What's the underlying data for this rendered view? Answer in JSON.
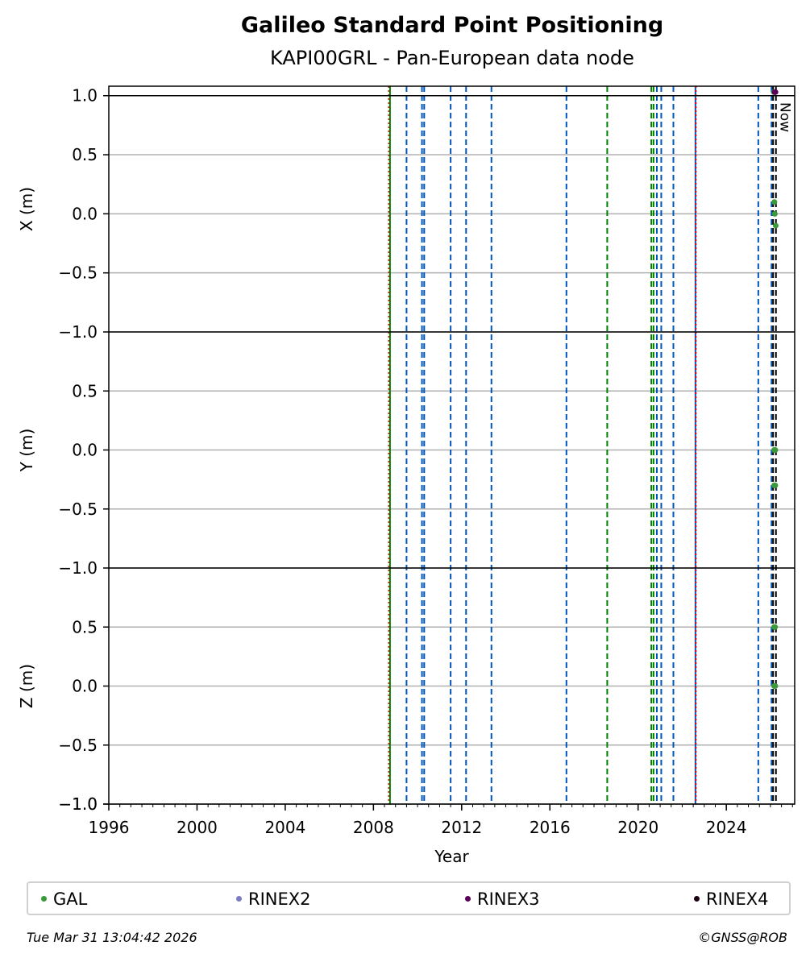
{
  "header": {
    "title": "Galileo Standard Point Positioning",
    "subtitle": "KAPI00GRL - Pan-European data node"
  },
  "chart_data": {
    "type": "scatter",
    "xlabel": "Year",
    "xlim": [
      1996,
      2027.1
    ],
    "x_ticks": [
      1996,
      2000,
      2004,
      2008,
      2012,
      2016,
      2020,
      2024
    ],
    "x_minor_step": 0.5,
    "now_label": "Now",
    "now_x": 2026.25,
    "panels": [
      {
        "ylabel": "X (m)",
        "ylim": [
          -1.0,
          1.08
        ],
        "yticks": [
          1.0,
          0.5,
          0.0,
          -0.5,
          -1.0
        ],
        "ytick_labels": [
          "1.0",
          "0.5",
          "0.0",
          "−0.5",
          "−1.0"
        ]
      },
      {
        "ylabel": "Y (m)",
        "ylim": [
          -1.0,
          1.0
        ],
        "yticks": [
          -1.0,
          0.5,
          0.0,
          -0.5
        ],
        "ytick_labels": [
          "−1.0",
          "0.5",
          "0.0",
          "−0.5"
        ]
      },
      {
        "ylabel": "Z (m)",
        "ylim": [
          -1.0,
          1.0
        ],
        "yticks": [
          -1.0,
          0.5,
          0.0,
          -0.5,
          -1.0
        ],
        "ytick_labels": [
          "−1.0",
          "0.5",
          "0.0",
          "−0.5",
          "−1.0"
        ]
      }
    ],
    "event_lines": [
      {
        "x": 2008.7,
        "color": "#ff0000",
        "style": "dotted"
      },
      {
        "x": 2008.75,
        "color": "#008000",
        "style": "solid"
      },
      {
        "x": 2009.5,
        "color": "#0055bb",
        "style": "dashed"
      },
      {
        "x": 2010.2,
        "color": "#0055bb",
        "style": "dashed"
      },
      {
        "x": 2010.3,
        "color": "#0055bb",
        "style": "dashed"
      },
      {
        "x": 2011.5,
        "color": "#0055bb",
        "style": "dashed"
      },
      {
        "x": 2012.2,
        "color": "#0055bb",
        "style": "dashed"
      },
      {
        "x": 2013.35,
        "color": "#0055bb",
        "style": "dashed"
      },
      {
        "x": 2016.75,
        "color": "#0055bb",
        "style": "dashed"
      },
      {
        "x": 2018.6,
        "color": "#008000",
        "style": "dashed"
      },
      {
        "x": 2020.6,
        "color": "#008000",
        "style": "dashed"
      },
      {
        "x": 2020.7,
        "color": "#008000",
        "style": "dashed"
      },
      {
        "x": 2020.85,
        "color": "#0055bb",
        "style": "dashed"
      },
      {
        "x": 2021.05,
        "color": "#0055bb",
        "style": "dashed"
      },
      {
        "x": 2021.6,
        "color": "#0055bb",
        "style": "dashed"
      },
      {
        "x": 2022.6,
        "color": "#0055bb",
        "style": "solid"
      },
      {
        "x": 2022.62,
        "color": "#ff0000",
        "style": "dotted"
      },
      {
        "x": 2025.45,
        "color": "#0055bb",
        "style": "dashed"
      },
      {
        "x": 2026.05,
        "color": "#0055bb",
        "style": "dashed"
      },
      {
        "x": 2026.12,
        "color": "#000000",
        "style": "dashed"
      },
      {
        "x": 2026.25,
        "color": "#000000",
        "style": "dashed"
      }
    ],
    "series": [
      {
        "name": "GAL",
        "color": "#3a9a3a",
        "points": [
          {
            "panel": 0,
            "x": 2026.15,
            "y": 1.03
          },
          {
            "panel": 0,
            "x": 2026.18,
            "y": 0.1
          },
          {
            "panel": 0,
            "x": 2026.2,
            "y": 0.0
          },
          {
            "panel": 0,
            "x": 2026.24,
            "y": -0.1
          },
          {
            "panel": 1,
            "x": 2026.17,
            "y": 0.0
          },
          {
            "panel": 1,
            "x": 2026.22,
            "y": 0.0
          },
          {
            "panel": 1,
            "x": 2026.17,
            "y": -0.3
          },
          {
            "panel": 1,
            "x": 2026.22,
            "y": -0.3
          },
          {
            "panel": 2,
            "x": 2026.17,
            "y": 0.5
          },
          {
            "panel": 2,
            "x": 2026.21,
            "y": 0.5
          },
          {
            "panel": 2,
            "x": 2026.17,
            "y": 0.0
          },
          {
            "panel": 2,
            "x": 2026.22,
            "y": 0.0
          }
        ]
      },
      {
        "name": "RINEX2",
        "color": "#7b7bc4",
        "points": []
      },
      {
        "name": "RINEX3",
        "color": "#5a005a",
        "points": [
          {
            "panel": 0,
            "x": 2026.19,
            "y": 1.03
          },
          {
            "panel": 0,
            "x": 2026.23,
            "y": 1.03
          }
        ]
      },
      {
        "name": "RINEX4",
        "color": "#1a0010",
        "points": []
      }
    ],
    "legend_position": "bottom"
  },
  "footer": {
    "timestamp": "Tue Mar 31 13:04:42 2026",
    "copyright": "©GNSS@ROB"
  }
}
